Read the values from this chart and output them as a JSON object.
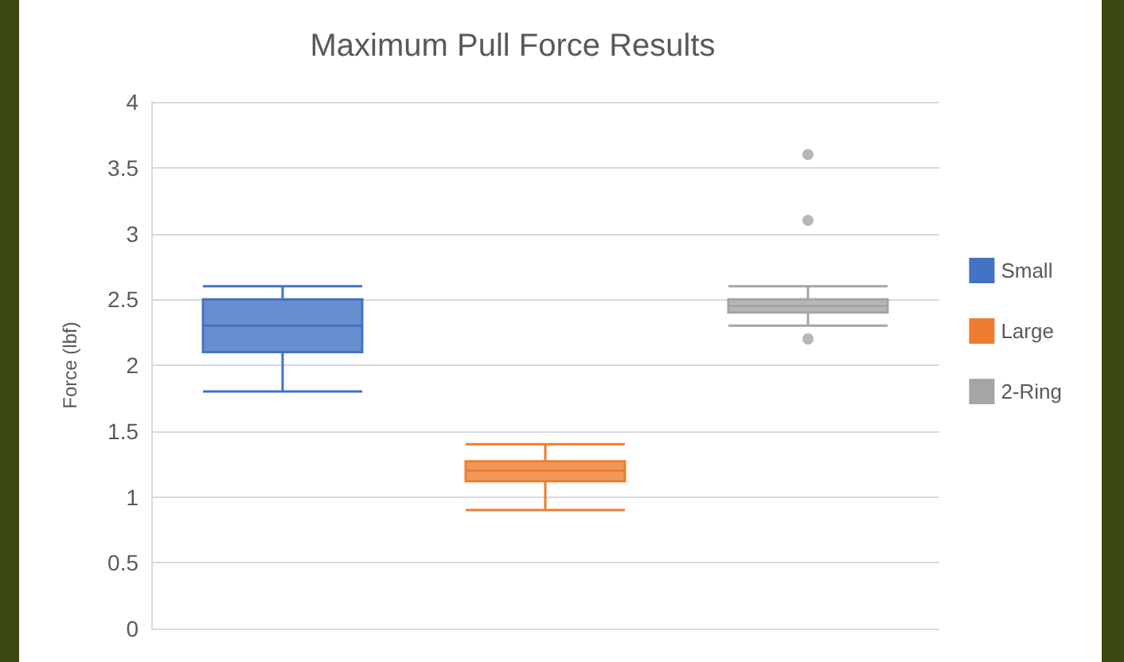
{
  "chart_data": {
    "type": "box",
    "title": "Maximum Pull Force Results",
    "ylabel": "Force (lbf)",
    "categories": [
      null,
      null,
      null
    ],
    "series": [
      {
        "name": "Small",
        "color": "#4472c4",
        "boxes": [
          {
            "low": 1.8,
            "q1": 2.1,
            "median": 2.3,
            "q3": 2.5,
            "high": 2.6
          },
          null,
          null
        ]
      },
      {
        "name": "Large",
        "color": "#ed7d31",
        "boxes": [
          null,
          {
            "low": 0.9,
            "q1": 1.12,
            "median": 1.2,
            "q3": 1.27,
            "high": 1.4
          },
          null
        ]
      },
      {
        "name": "2-Ring",
        "color": "#a5a5a5",
        "boxes": [
          null,
          null,
          {
            "low": 2.3,
            "q1": 2.4,
            "median": 2.45,
            "q3": 2.5,
            "high": 2.6,
            "outliers": [
              3.6,
              3.1,
              2.2
            ]
          }
        ]
      }
    ],
    "ylim": [
      0,
      4
    ],
    "yticks": [
      0,
      0.5,
      1,
      1.5,
      2,
      2.5,
      3,
      3.5,
      4
    ],
    "grid": "y",
    "legend": "right"
  }
}
